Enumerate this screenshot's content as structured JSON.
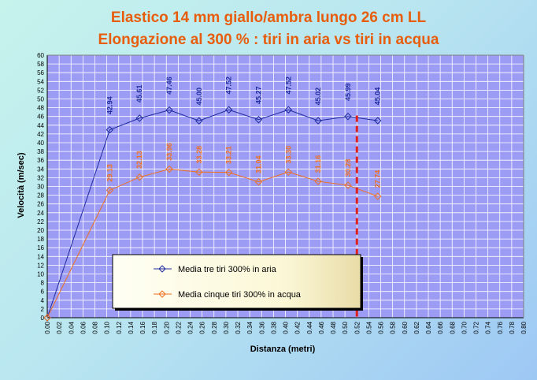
{
  "chart_data": {
    "type": "line",
    "title": "Elastico 14 mm  giallo/ambra lungo 26 cm LL",
    "subtitle": "Elongazione al 300 % : tiri in aria vs tiri in acqua",
    "xlabel": "Distanza (metri)",
    "ylabel": "Velocità (m/sec)",
    "xlim": [
      0,
      0.8
    ],
    "ylim": [
      0,
      60
    ],
    "x_step": 0.02,
    "y_step": 2,
    "grid": true,
    "legend_position": "bottom-center",
    "series": [
      {
        "name": "Media tre tiri 300% in aria",
        "color": "#1f2ba0",
        "x": [
          0.0,
          0.105,
          0.155,
          0.205,
          0.255,
          0.305,
          0.355,
          0.405,
          0.455,
          0.505,
          0.555
        ],
        "values": [
          0,
          42.94,
          45.61,
          47.46,
          45.0,
          47.52,
          45.27,
          47.52,
          45.02,
          45.99,
          45.04
        ],
        "labels": [
          "",
          "42.94",
          "45.61",
          "47.46",
          "45.00",
          "47.52",
          "45.27",
          "47.52",
          "45.02",
          "45.99",
          "45.04"
        ]
      },
      {
        "name": "Media cinque tiri 300% in acqua",
        "color": "#f07020",
        "x": [
          0.0,
          0.105,
          0.155,
          0.205,
          0.255,
          0.305,
          0.355,
          0.405,
          0.455,
          0.505,
          0.555
        ],
        "values": [
          0,
          29.13,
          32.13,
          33.96,
          33.28,
          33.21,
          31.04,
          33.3,
          31.16,
          30.28,
          27.74
        ],
        "labels": [
          "",
          "29.13",
          "32.13",
          "33.96",
          "33.28",
          "33.21",
          "31.04",
          "33.30",
          "31.16",
          "30.28",
          "27.74"
        ]
      }
    ],
    "reference_line": {
      "x": 0.52,
      "color": "#e0201c"
    }
  },
  "colors": {
    "plot_background": "#9c9cf4",
    "grid": "#ffffff",
    "legend_background": "#fffff0"
  }
}
